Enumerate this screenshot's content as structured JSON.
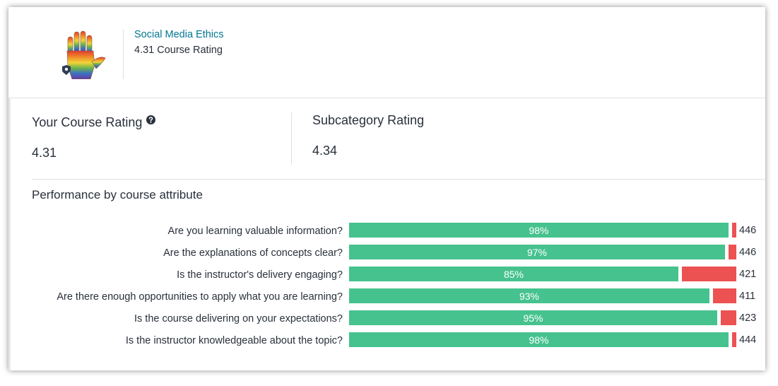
{
  "course": {
    "title": "Social Media Ethics",
    "rating_text": "4.31 Course Rating"
  },
  "your_rating": {
    "label": "Your Course Rating",
    "value": "4.31",
    "help_icon": "question-circle-icon"
  },
  "subcategory_rating": {
    "label": "Subcategory Rating",
    "value": "4.34"
  },
  "performance": {
    "title": "Performance by course attribute",
    "colors": {
      "positive": "#46c28e",
      "negative": "#ec5252"
    },
    "rows": [
      {
        "question": "Are you learning valuable information?",
        "percent_label": "98%",
        "positive": 0.98,
        "count": "446"
      },
      {
        "question": "Are the explanations of concepts clear?",
        "percent_label": "97%",
        "positive": 0.97,
        "count": "446"
      },
      {
        "question": "Is the instructor's delivery engaging?",
        "percent_label": "85%",
        "positive": 0.85,
        "count": "421"
      },
      {
        "question": "Are there enough opportunities to apply what you are learning?",
        "percent_label": "93%",
        "positive": 0.93,
        "count": "411"
      },
      {
        "question": "Is the course delivering on your expectations?",
        "percent_label": "95%",
        "positive": 0.95,
        "count": "423"
      },
      {
        "question": "Is the instructor knowledgeable about the topic?",
        "percent_label": "98%",
        "positive": 0.98,
        "count": "444"
      }
    ]
  }
}
